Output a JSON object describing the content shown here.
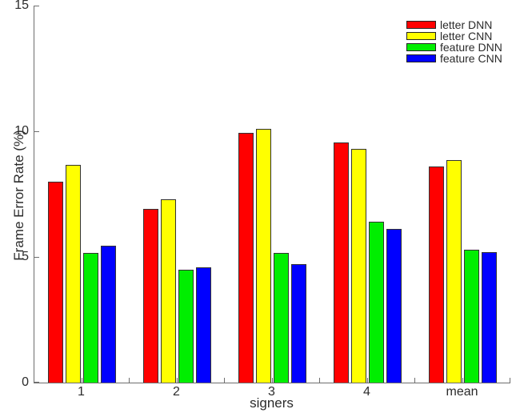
{
  "figure": {
    "background": "#ffffff",
    "axis_color": "#6e6e6e",
    "text_color": "#2b2b2b",
    "bar_border_color": "#333333"
  },
  "chart_data": {
    "type": "bar",
    "title": "",
    "xlabel": "signers",
    "ylabel": "Frame Error Rate (%)",
    "categories": [
      "1",
      "2",
      "3",
      "4",
      "mean"
    ],
    "series": [
      {
        "name": "letter DNN",
        "color": "#ff0000",
        "values": [
          8.0,
          6.9,
          9.95,
          9.55,
          8.6
        ]
      },
      {
        "name": "letter CNN",
        "color": "#ffff00",
        "values": [
          8.65,
          7.3,
          10.1,
          9.3,
          8.85
        ]
      },
      {
        "name": "feature DNN",
        "color": "#00ee00",
        "values": [
          5.15,
          4.5,
          5.15,
          6.4,
          5.3
        ]
      },
      {
        "name": "feature CNN",
        "color": "#0000ff",
        "values": [
          5.45,
          4.6,
          4.7,
          6.1,
          5.2
        ]
      }
    ],
    "ylim": [
      0,
      15
    ],
    "yticks": [
      "0",
      "5",
      "10",
      "15"
    ],
    "grid": false,
    "legend_position": "top-right"
  }
}
